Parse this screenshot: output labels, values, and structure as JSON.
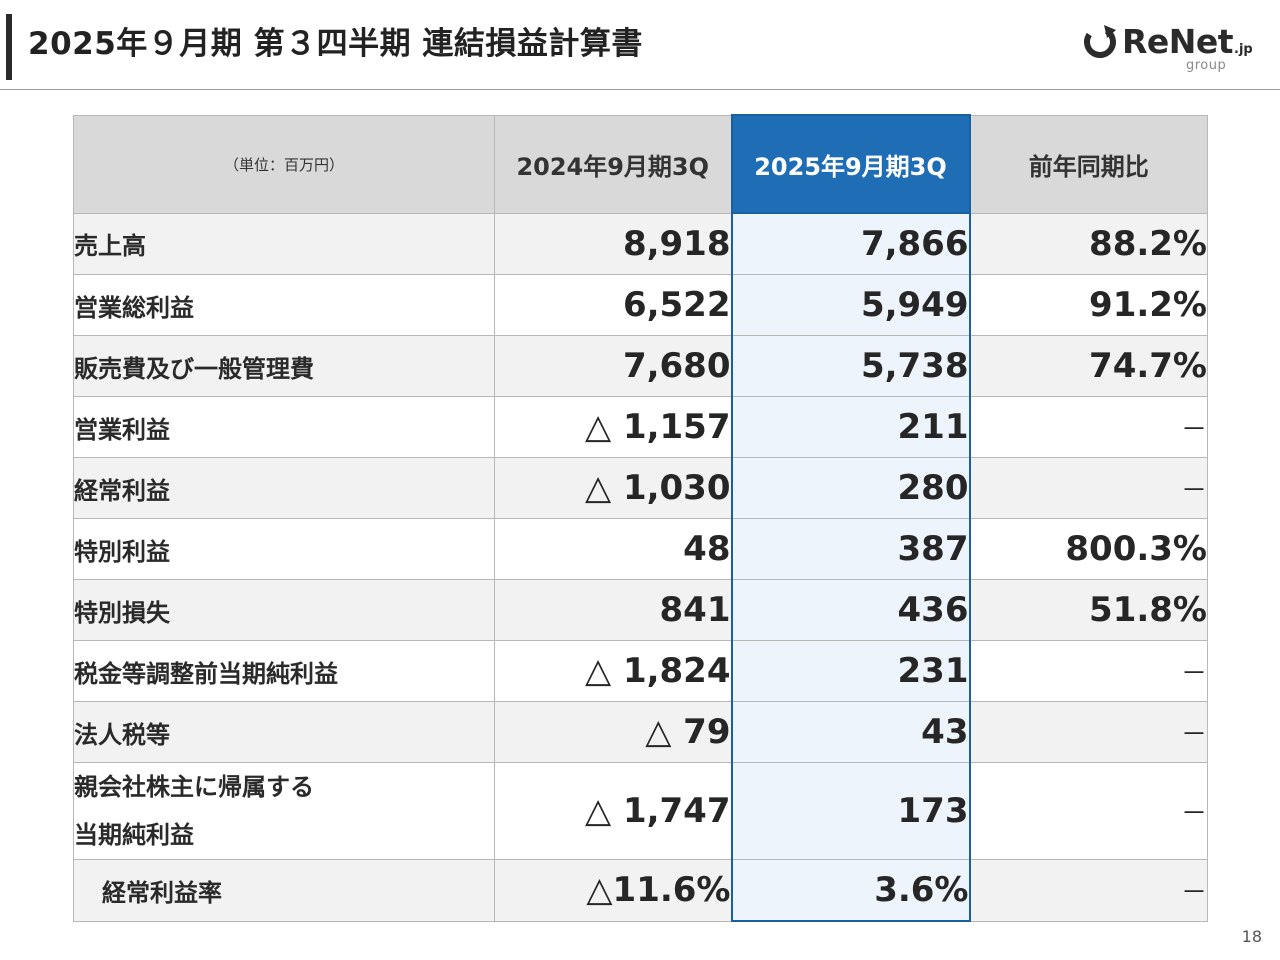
{
  "title": "2025年９月期 第３四半期 連結損益計算書",
  "logo": {
    "brand": "ReNet",
    "suffix": ".jp",
    "sub": "group",
    "icon": "refresh-arrow-icon"
  },
  "colors": {
    "accent": "#1f6db5",
    "header_bg": "#d9d9d9",
    "highlight_bg": "#eef4fb"
  },
  "table": {
    "unit_label": "（単位：百万円）",
    "columns": [
      "2024年9月期3Q",
      "2025年9月期3Q",
      "前年同期比"
    ],
    "rows": [
      {
        "label": "売上高",
        "prev": "8,918",
        "curr": "7,866",
        "ratio": "88.2%"
      },
      {
        "label": "営業総利益",
        "prev": "6,522",
        "curr": "5,949",
        "ratio": "91.2%"
      },
      {
        "label": "販売費及び一般管理費",
        "prev": "7,680",
        "curr": "5,738",
        "ratio": "74.7%"
      },
      {
        "label": "営業利益",
        "prev": "△ 1,157",
        "curr": "211",
        "ratio": "－"
      },
      {
        "label": "経常利益",
        "prev": "△ 1,030",
        "curr": "280",
        "ratio": "－"
      },
      {
        "label": "特別利益",
        "prev": "48",
        "curr": "387",
        "ratio": "800.3%"
      },
      {
        "label": "特別損失",
        "prev": "841",
        "curr": "436",
        "ratio": "51.8%"
      },
      {
        "label": "税金等調整前当期純利益",
        "prev": "△ 1,824",
        "curr": "231",
        "ratio": "－"
      },
      {
        "label": "法人税等",
        "prev": "△ 79",
        "curr": "43",
        "ratio": "－"
      },
      {
        "label_line1": "親会社株主に帰属する",
        "label_line2": "当期純利益",
        "prev": "△ 1,747",
        "curr": "173",
        "ratio": "－"
      },
      {
        "label": "経常利益率",
        "prev": "△11.6%",
        "curr": "3.6%",
        "ratio": "－"
      }
    ]
  },
  "page_number": "18"
}
